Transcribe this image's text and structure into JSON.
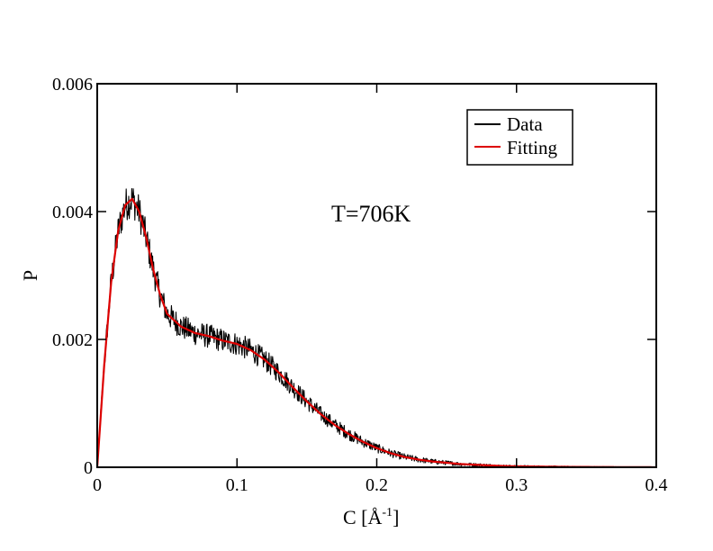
{
  "chart_data": {
    "type": "line",
    "title": "",
    "annotation": "T=706K",
    "xlabel": "C [",
    "xlabel_unit": "Å",
    "xlabel_exp": "-1",
    "xlabel_close": "]",
    "ylabel": "P",
    "xlim": [
      0,
      0.4
    ],
    "ylim": [
      0,
      0.006
    ],
    "x_ticks": [
      0,
      0.1,
      0.2,
      0.3,
      0.4
    ],
    "x_tick_labels": [
      "0",
      "0.1",
      "0.2",
      "0.3",
      "0.4"
    ],
    "y_ticks": [
      0,
      0.002,
      0.004,
      0.006
    ],
    "y_tick_labels": [
      "0",
      "0.002",
      "0.004",
      "0.006"
    ],
    "grid": false,
    "legend_position": "top-right",
    "series": [
      {
        "name": "Data",
        "color": "#000000",
        "style": "noisy",
        "x": [
          0,
          0.005,
          0.01,
          0.015,
          0.02,
          0.025,
          0.03,
          0.035,
          0.04,
          0.045,
          0.05,
          0.06,
          0.07,
          0.08,
          0.09,
          0.1,
          0.11,
          0.12,
          0.13,
          0.14,
          0.15,
          0.16,
          0.17,
          0.18,
          0.19,
          0.2,
          0.21,
          0.22,
          0.23,
          0.24,
          0.25,
          0.26,
          0.27,
          0.28,
          0.29,
          0.3,
          0.32,
          0.34,
          0.36,
          0.38,
          0.4
        ],
        "y": [
          0,
          0.0016,
          0.0029,
          0.0037,
          0.0041,
          0.0042,
          0.004,
          0.0036,
          0.0031,
          0.0027,
          0.0024,
          0.0022,
          0.0021,
          0.00205,
          0.00198,
          0.00193,
          0.00183,
          0.00168,
          0.00148,
          0.00125,
          0.00103,
          0.00083,
          0.00066,
          0.00052,
          0.0004,
          0.0003,
          0.00022,
          0.00016,
          0.00012,
          9e-05,
          7e-05,
          5e-05,
          4e-05,
          3e-05,
          2e-05,
          1.5e-05,
          1e-05,
          6e-06,
          4e-06,
          2e-06,
          1e-06
        ]
      },
      {
        "name": "Fitting",
        "color": "#dd0000",
        "style": "smooth",
        "x": [
          0,
          0.005,
          0.01,
          0.015,
          0.02,
          0.025,
          0.03,
          0.035,
          0.04,
          0.045,
          0.05,
          0.06,
          0.07,
          0.08,
          0.09,
          0.1,
          0.11,
          0.12,
          0.13,
          0.14,
          0.15,
          0.16,
          0.17,
          0.18,
          0.19,
          0.2,
          0.21,
          0.22,
          0.23,
          0.24,
          0.25,
          0.26,
          0.27,
          0.28,
          0.29,
          0.3,
          0.32,
          0.34,
          0.36,
          0.38,
          0.4
        ],
        "y": [
          0,
          0.0016,
          0.0029,
          0.0037,
          0.0041,
          0.0042,
          0.004,
          0.0036,
          0.0031,
          0.0027,
          0.0024,
          0.0022,
          0.0021,
          0.00205,
          0.00198,
          0.00193,
          0.00183,
          0.00168,
          0.00148,
          0.00125,
          0.00103,
          0.00083,
          0.00066,
          0.00052,
          0.0004,
          0.0003,
          0.00022,
          0.00016,
          0.00012,
          9e-05,
          7e-05,
          5e-05,
          4e-05,
          3e-05,
          2e-05,
          1.5e-05,
          1e-05,
          6e-06,
          4e-06,
          2e-06,
          1e-06
        ]
      }
    ]
  }
}
